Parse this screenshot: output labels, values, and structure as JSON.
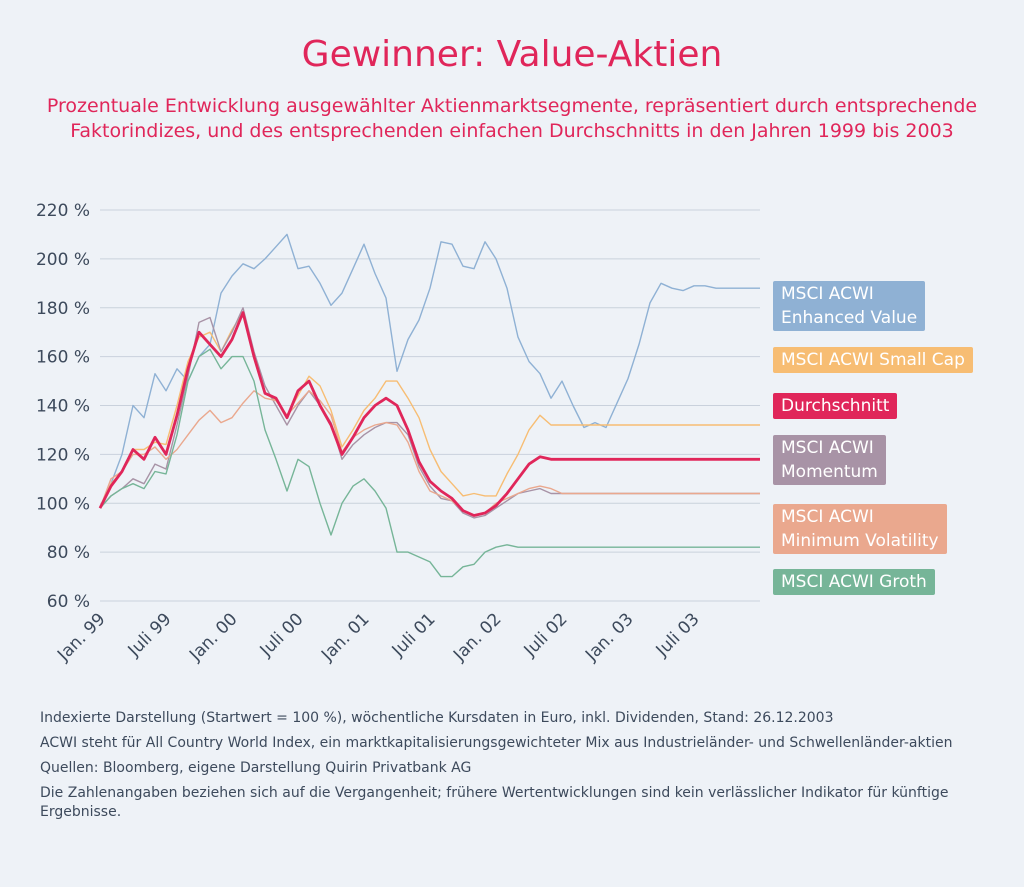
{
  "header": {
    "title": "Gewinner: Value-Aktien",
    "subtitle": "Prozentuale Entwicklung ausgewählter Aktienmarktsegmente, repräsentiert durch entsprechende Faktorindizes, und des entsprechenden einfachen Durchschnitts in den Jahren 1999 bis 2003"
  },
  "notes": [
    "Indexierte Darstellung (Startwert = 100 %), wöchentliche Kursdaten in Euro, inkl. Dividenden, Stand: 26.12.2003",
    "ACWI steht für All Country World Index, ein marktkapitalisierungsgewichteter Mix aus Industrieländer- und Schwellenländer-aktien",
    "Quellen: Bloomberg, eigene Darstellung Quirin Privatbank AG",
    "Die Zahlenangaben beziehen sich auf die Vergangenheit; frühere Wertentwicklungen sind kein verlässlicher Indikator für künftige Ergebnisse."
  ],
  "chart_data": {
    "type": "line",
    "ylim": [
      60,
      220
    ],
    "y_ticks": [
      220,
      200,
      180,
      160,
      140,
      120,
      100,
      80,
      60
    ],
    "y_tick_labels": [
      "220 %",
      "200 %",
      "180 %",
      "160 %",
      "140 %",
      "120 %",
      "100 %",
      "80 %",
      "60 %"
    ],
    "y_unit": "%",
    "x_ticks": [
      "Jan. 99",
      "Juli 99",
      "Jan. 00",
      "Juli 00",
      "Jan. 01",
      "Juli 01",
      "Jan. 02",
      "Juli 02",
      "Jan. 03",
      "Juli 03"
    ],
    "x_range": [
      0,
      60
    ],
    "grid": true,
    "legend_position": "right",
    "series": [
      {
        "name": "MSCI ACWI Enhanced Value",
        "legend_label": "MSCI ACWI\nEnhanced Value",
        "color": "#8fb1d4",
        "width": 1.4,
        "x": [
          0,
          1,
          2,
          3,
          4,
          5,
          6,
          7,
          8,
          9,
          10,
          11,
          12,
          13,
          14,
          15,
          16,
          17,
          18,
          19,
          20,
          21,
          22,
          23,
          24,
          25,
          26,
          27,
          28,
          29,
          30,
          31,
          32,
          33,
          34,
          35,
          36,
          37,
          38,
          39,
          40,
          41,
          42,
          43,
          44,
          45,
          46,
          47,
          48,
          49,
          50,
          51,
          52,
          53,
          54,
          55,
          56,
          57,
          58,
          59,
          60
        ],
        "values": [
          98,
          108,
          120,
          140,
          135,
          153,
          146,
          155,
          150,
          160,
          165,
          186,
          193,
          198,
          196,
          200,
          205,
          210,
          196,
          197,
          190,
          181,
          186,
          196,
          206,
          194,
          184,
          154,
          167,
          175,
          188,
          207,
          206,
          197,
          196,
          207,
          200,
          188,
          168,
          158,
          153,
          143,
          150,
          140,
          131,
          133,
          131,
          141,
          151,
          165,
          182,
          190,
          188,
          187,
          189,
          189,
          188,
          188,
          188,
          188,
          188
        ]
      },
      {
        "name": "MSCI ACWI Small Cap",
        "legend_label": "MSCI ACWI Small Cap",
        "color": "#f7bd73",
        "width": 1.4,
        "x": [
          0,
          1,
          2,
          3,
          4,
          5,
          6,
          7,
          8,
          9,
          10,
          11,
          12,
          13,
          14,
          15,
          16,
          17,
          18,
          19,
          20,
          21,
          22,
          23,
          24,
          25,
          26,
          27,
          28,
          29,
          30,
          31,
          32,
          33,
          34,
          35,
          36,
          37,
          38,
          39,
          40,
          41,
          42,
          43,
          44,
          45,
          46,
          47,
          48,
          49,
          50,
          51,
          52,
          53,
          54,
          55,
          56,
          57,
          58,
          59,
          60
        ],
        "values": [
          98,
          108,
          113,
          122,
          122,
          125,
          124,
          140,
          158,
          168,
          170,
          162,
          171,
          178,
          160,
          145,
          142,
          136,
          144,
          152,
          148,
          138,
          123,
          130,
          138,
          143,
          150,
          150,
          143,
          135,
          122,
          113,
          108,
          103,
          104,
          103,
          103,
          112,
          120,
          130,
          136,
          132,
          132,
          132,
          132,
          132,
          132,
          132,
          132,
          132,
          132,
          132,
          132,
          132,
          132,
          132,
          132,
          132,
          132,
          132,
          132
        ]
      },
      {
        "name": "MSCI ACWI Momentum",
        "legend_label": "MSCI ACWI\nMomentum",
        "color": "#a893a6",
        "width": 1.4,
        "x": [
          0,
          1,
          2,
          3,
          4,
          5,
          6,
          7,
          8,
          9,
          10,
          11,
          12,
          13,
          14,
          15,
          16,
          17,
          18,
          19,
          20,
          21,
          22,
          23,
          24,
          25,
          26,
          27,
          28,
          29,
          30,
          31,
          32,
          33,
          34,
          35,
          36,
          37,
          38,
          39,
          40,
          41,
          42,
          43,
          44,
          45,
          46,
          47,
          48,
          49,
          50,
          51,
          52,
          53,
          54,
          55,
          56,
          57,
          58,
          59,
          60
        ],
        "values": [
          98,
          103,
          106,
          110,
          108,
          116,
          114,
          132,
          152,
          174,
          176,
          162,
          170,
          180,
          162,
          148,
          140,
          132,
          140,
          146,
          140,
          133,
          118,
          124,
          128,
          131,
          133,
          133,
          128,
          115,
          107,
          102,
          101,
          96,
          94,
          95,
          98,
          101,
          104,
          105,
          106,
          104,
          104,
          104,
          104,
          104,
          104,
          104,
          104,
          104,
          104,
          104,
          104,
          104,
          104,
          104,
          104,
          104,
          104,
          104,
          104
        ]
      },
      {
        "name": "MSCI ACWI Minimum Volatility",
        "legend_label": "MSCI ACWI\nMinimum Volatility",
        "color": "#eaa88e",
        "width": 1.4,
        "x": [
          0,
          1,
          2,
          3,
          4,
          5,
          6,
          7,
          8,
          9,
          10,
          11,
          12,
          13,
          14,
          15,
          16,
          17,
          18,
          19,
          20,
          21,
          22,
          23,
          24,
          25,
          26,
          27,
          28,
          29,
          30,
          31,
          32,
          33,
          34,
          35,
          36,
          37,
          38,
          39,
          40,
          41,
          42,
          43,
          44,
          45,
          46,
          47,
          48,
          49,
          50,
          51,
          52,
          53,
          54,
          55,
          56,
          57,
          58,
          59,
          60
        ],
        "values": [
          98,
          110,
          113,
          120,
          120,
          123,
          118,
          122,
          128,
          134,
          138,
          133,
          135,
          141,
          146,
          143,
          142,
          136,
          141,
          146,
          142,
          136,
          121,
          127,
          130,
          132,
          133,
          132,
          125,
          113,
          105,
          103,
          101,
          97,
          95,
          96,
          100,
          102,
          104,
          106,
          107,
          106,
          104,
          104,
          104,
          104,
          104,
          104,
          104,
          104,
          104,
          104,
          104,
          104,
          104,
          104,
          104,
          104,
          104,
          104,
          104
        ]
      },
      {
        "name": "MSCI ACWI Groth",
        "legend_label": "MSCI ACWI Groth",
        "color": "#76b598",
        "width": 1.4,
        "x": [
          0,
          1,
          2,
          3,
          4,
          5,
          6,
          7,
          8,
          9,
          10,
          11,
          12,
          13,
          14,
          15,
          16,
          17,
          18,
          19,
          20,
          21,
          22,
          23,
          24,
          25,
          26,
          27,
          28,
          29,
          30,
          31,
          32,
          33,
          34,
          35,
          36,
          37,
          38,
          39,
          40,
          41,
          42,
          43,
          44,
          45,
          46,
          47,
          48,
          49,
          50,
          51,
          52,
          53,
          54,
          55,
          56,
          57,
          58,
          59,
          60
        ],
        "values": [
          98,
          103,
          106,
          108,
          106,
          113,
          112,
          128,
          150,
          160,
          163,
          155,
          160,
          160,
          150,
          130,
          118,
          105,
          118,
          115,
          100,
          87,
          100,
          107,
          110,
          105,
          98,
          80,
          80,
          78,
          76,
          70,
          70,
          74,
          75,
          80,
          82,
          83,
          82,
          82,
          82,
          82,
          82,
          82,
          82,
          82,
          82,
          82,
          82,
          82,
          82,
          82,
          82,
          82,
          82,
          82,
          82,
          82,
          82,
          82,
          82
        ]
      },
      {
        "name": "Durchschnitt",
        "legend_label": "Durchschnitt",
        "color": "#e0265a",
        "width": 2.8,
        "x": [
          0,
          1,
          2,
          3,
          4,
          5,
          6,
          7,
          8,
          9,
          10,
          11,
          12,
          13,
          14,
          15,
          16,
          17,
          18,
          19,
          20,
          21,
          22,
          23,
          24,
          25,
          26,
          27,
          28,
          29,
          30,
          31,
          32,
          33,
          34,
          35,
          36,
          37,
          38,
          39,
          40,
          41,
          42,
          43,
          44,
          45,
          46,
          47,
          48,
          49,
          50,
          51,
          52,
          53,
          54,
          55,
          56,
          57,
          58,
          59,
          60
        ],
        "values": [
          98,
          107,
          113,
          122,
          118,
          127,
          120,
          136,
          155,
          170,
          165,
          160,
          167,
          178,
          160,
          145,
          143,
          135,
          146,
          150,
          140,
          132,
          120,
          127,
          135,
          140,
          143,
          140,
          130,
          117,
          109,
          105,
          102,
          97,
          95,
          96,
          99,
          104,
          110,
          116,
          119,
          118,
          118,
          118,
          118,
          118,
          118,
          118,
          118,
          118,
          118,
          118,
          118,
          118,
          118,
          118,
          118,
          118,
          118,
          118,
          118
        ]
      }
    ]
  }
}
